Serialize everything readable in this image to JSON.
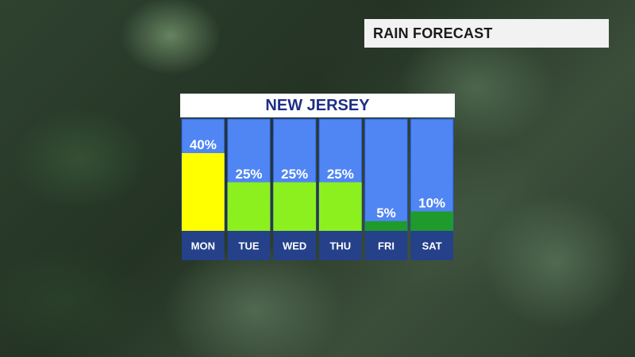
{
  "header": {
    "title": "RAIN FORECAST"
  },
  "colors": {
    "column_bg": "#4f86f4",
    "column_border": "#2b56d8",
    "day_label_bg": "#25418a",
    "bar_high": "#ffff00",
    "bar_mid": "#8cf01e",
    "bar_low": "#1f9a2c",
    "region_text": "#1e2f86"
  },
  "chart_data": {
    "type": "bar",
    "title": "NEW JERSEY",
    "categories": [
      "MON",
      "TUE",
      "WED",
      "THU",
      "FRI",
      "SAT"
    ],
    "values": [
      40,
      25,
      25,
      25,
      5,
      10
    ],
    "value_labels": [
      "40%",
      "25%",
      "25%",
      "25%",
      "5%",
      "10%"
    ],
    "bar_colors": [
      "#ffff00",
      "#8cf01e",
      "#8cf01e",
      "#8cf01e",
      "#1f9a2c",
      "#1f9a2c"
    ],
    "ylim": [
      0,
      100
    ],
    "grid": false,
    "legend": "none"
  }
}
